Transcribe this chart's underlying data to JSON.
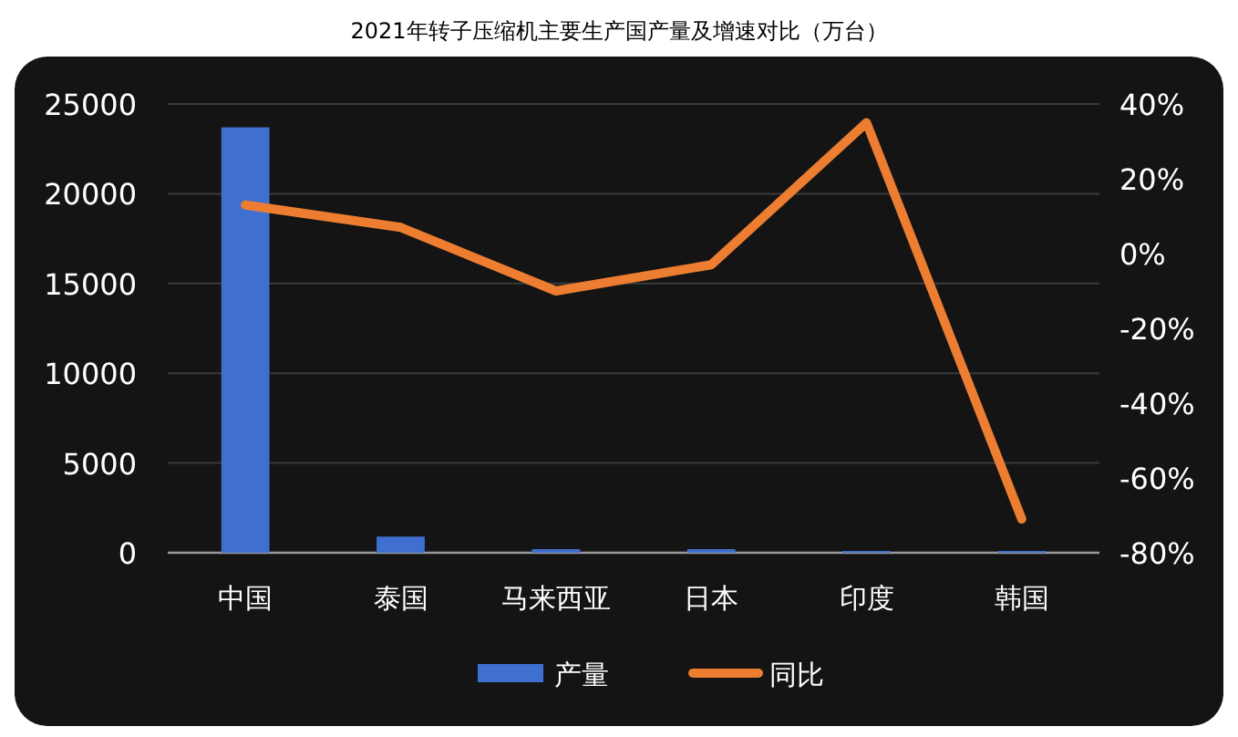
{
  "chart_data": {
    "type": "bar",
    "title": "2021年转子压缩机主要生产国产量及增速对比（万台）",
    "categories": [
      "中国",
      "泰国",
      "马来西亚",
      "日本",
      "印度",
      "韩国"
    ],
    "series": [
      {
        "name": "产量",
        "color": "#3f6fcf",
        "values": [
          23700,
          900,
          200,
          200,
          100,
          100
        ]
      },
      {
        "name": "同比",
        "type": "line",
        "axis": "y2",
        "color": "#ed7d31",
        "values": [
          13,
          7,
          -10,
          -3,
          35,
          -71
        ]
      }
    ],
    "ylim": [
      0,
      25000
    ],
    "yticks": [
      0,
      5000,
      10000,
      15000,
      20000,
      25000
    ],
    "y2lim": [
      -80,
      40
    ],
    "y2ticks": [
      {
        "value": -80,
        "label": "-80%"
      },
      {
        "value": -60,
        "label": "-60%"
      },
      {
        "value": -40,
        "label": "-40%"
      },
      {
        "value": -20,
        "label": "-20%"
      },
      {
        "value": 0,
        "label": "0%"
      },
      {
        "value": 20,
        "label": "20%"
      },
      {
        "value": 40,
        "label": "40%"
      }
    ],
    "grid": "y",
    "legend": "bottom",
    "marker": "none",
    "line_style": "solid"
  }
}
